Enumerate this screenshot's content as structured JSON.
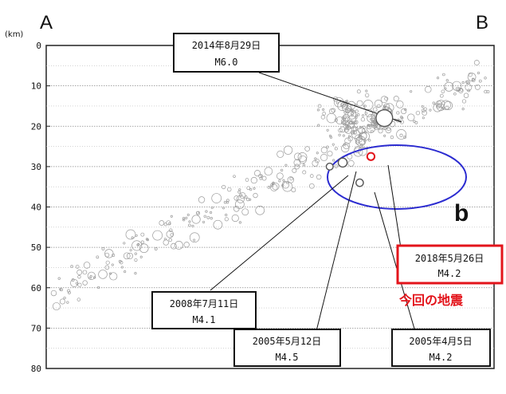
{
  "corner_labels": {
    "left": "A",
    "right": "B"
  },
  "unit_label": "(km)",
  "region_label": "b",
  "highlight_caption": "今回の地震",
  "colors": {
    "highlight": "#e3141b",
    "region": "#2b2bd0",
    "grid": "#888888",
    "background_points": "#9a9a9a"
  },
  "chart_data": {
    "type": "scatter",
    "title": "",
    "xlabel": "",
    "ylabel": "(km)",
    "y_ticks": [
      "0",
      "10",
      "20",
      "30",
      "40",
      "50",
      "60",
      "70",
      "80"
    ],
    "ylim": [
      0,
      80
    ],
    "y_inverted": true,
    "grid": "horizontal dotted lines",
    "highlighted_events": [
      {
        "date": "2014年8月29日",
        "magnitude": "M6.0",
        "x": 0.755,
        "depth": 18
      },
      {
        "date": "2008年7月11日",
        "magnitude": "M4.1",
        "x": 0.633,
        "depth": 30
      },
      {
        "date": "2005年5月12日",
        "magnitude": "M4.5",
        "x": 0.662,
        "depth": 29
      },
      {
        "date": "2005年4月5日",
        "magnitude": "M4.2",
        "x": 0.7,
        "depth": 34
      },
      {
        "date": "2018年5月26日",
        "magnitude": "M4.2",
        "x": 0.725,
        "depth": 27.5,
        "current": true
      }
    ],
    "background_cluster_hint": {
      "approx_points": 420
    }
  },
  "annotations": [
    {
      "id": "2014",
      "line1": "2014年8月29日",
      "line2": "M6.0"
    },
    {
      "id": "2008",
      "line1": "2008年7月11日",
      "line2": "M4.1"
    },
    {
      "id": "2005a",
      "line1": "2005年5月12日",
      "line2": "M4.5"
    },
    {
      "id": "2005b",
      "line1": "2005年4月5日",
      "line2": "M4.2"
    },
    {
      "id": "2018",
      "line1": "2018年5月26日",
      "line2": "M4.2"
    }
  ]
}
